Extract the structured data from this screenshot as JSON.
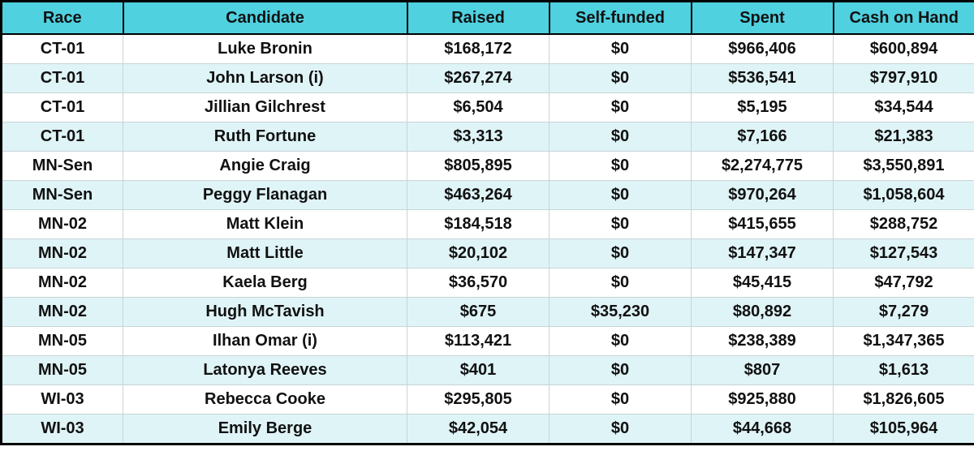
{
  "table": {
    "headers": [
      "Race",
      "Candidate",
      "Raised",
      "Self-funded",
      "Spent",
      "Cash on Hand"
    ],
    "rows": [
      [
        "CT-01",
        "Luke Bronin",
        "$168,172",
        "$0",
        "$966,406",
        "$600,894"
      ],
      [
        "CT-01",
        "John Larson (i)",
        "$267,274",
        "$0",
        "$536,541",
        "$797,910"
      ],
      [
        "CT-01",
        "Jillian Gilchrest",
        "$6,504",
        "$0",
        "$5,195",
        "$34,544"
      ],
      [
        "CT-01",
        "Ruth Fortune",
        "$3,313",
        "$0",
        "$7,166",
        "$21,383"
      ],
      [
        "MN-Sen",
        "Angie Craig",
        "$805,895",
        "$0",
        "$2,274,775",
        "$3,550,891"
      ],
      [
        "MN-Sen",
        "Peggy Flanagan",
        "$463,264",
        "$0",
        "$970,264",
        "$1,058,604"
      ],
      [
        "MN-02",
        "Matt Klein",
        "$184,518",
        "$0",
        "$415,655",
        "$288,752"
      ],
      [
        "MN-02",
        "Matt Little",
        "$20,102",
        "$0",
        "$147,347",
        "$127,543"
      ],
      [
        "MN-02",
        "Kaela Berg",
        "$36,570",
        "$0",
        "$45,415",
        "$47,792"
      ],
      [
        "MN-02",
        "Hugh McTavish",
        "$675",
        "$35,230",
        "$80,892",
        "$7,279"
      ],
      [
        "MN-05",
        "Ilhan Omar (i)",
        "$113,421",
        "$0",
        "$238,389",
        "$1,347,365"
      ],
      [
        "MN-05",
        "Latonya Reeves",
        "$401",
        "$0",
        "$807",
        "$1,613"
      ],
      [
        "WI-03",
        "Rebecca Cooke",
        "$295,805",
        "$0",
        "$925,880",
        "$1,826,605"
      ],
      [
        "WI-03",
        "Emily Berge",
        "$42,054",
        "$0",
        "$44,668",
        "$105,964"
      ]
    ]
  }
}
